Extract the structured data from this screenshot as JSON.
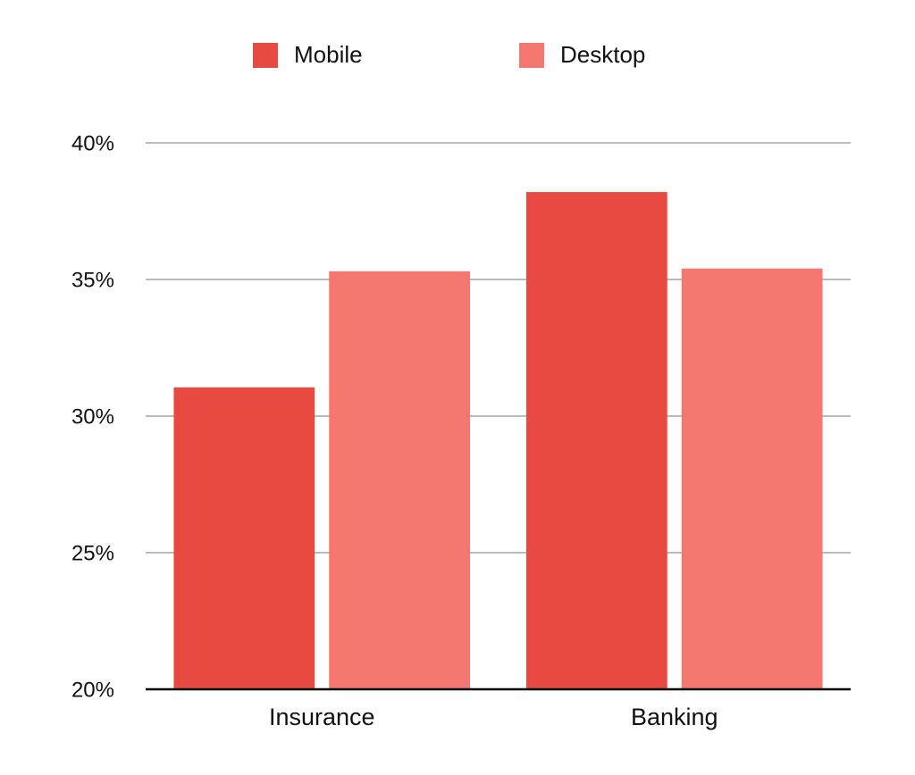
{
  "chart_data": {
    "type": "bar",
    "categories": [
      "Insurance",
      "Banking"
    ],
    "series": [
      {
        "name": "Mobile",
        "color": "#e94a3f",
        "values": [
          31.05,
          38.2
        ]
      },
      {
        "name": "Desktop",
        "color": "#f47770",
        "values": [
          35.3,
          35.4
        ]
      }
    ],
    "ylim": [
      20,
      40
    ],
    "yticks": [
      {
        "value": 20,
        "label": "20%"
      },
      {
        "value": 25,
        "label": "25%"
      },
      {
        "value": 30,
        "label": "30%"
      },
      {
        "value": 35,
        "label": "35%"
      },
      {
        "value": 40,
        "label": "40%"
      }
    ],
    "grid": true,
    "legend": "top"
  }
}
